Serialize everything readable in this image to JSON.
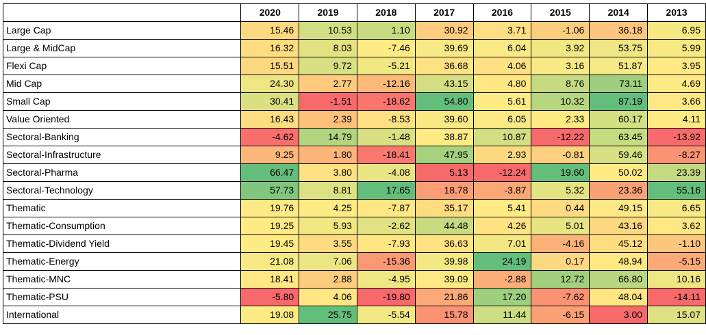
{
  "chart_data": {
    "type": "heatmap",
    "columns": [
      "2020",
      "2019",
      "2018",
      "2017",
      "2016",
      "2015",
      "2014",
      "2013"
    ],
    "rows": [
      {
        "category": "Large Cap",
        "values": [
          15.46,
          10.53,
          1.1,
          30.92,
          3.71,
          -1.06,
          36.18,
          6.95
        ],
        "display": [
          "15.46",
          "10.53",
          "1.10",
          "30.92",
          "3.71",
          "-1.06",
          "36.18",
          "6.95"
        ]
      },
      {
        "category": "Large & MidCap",
        "values": [
          16.32,
          8.03,
          -7.46,
          39.69,
          6.04,
          3.92,
          53.75,
          5.99
        ],
        "display": [
          "16.32",
          "8.03",
          "-7.46",
          "39.69",
          "6.04",
          "3.92",
          "53.75",
          "5.99"
        ]
      },
      {
        "category": "Flexi Cap",
        "values": [
          15.51,
          9.72,
          -5.21,
          36.68,
          4.06,
          3.16,
          51.87,
          3.95
        ],
        "display": [
          "15.51",
          "9.72",
          "-5.21",
          "36.68",
          "4.06",
          "3.16",
          "51.87",
          "3.95"
        ]
      },
      {
        "category": "Mid Cap",
        "values": [
          24.3,
          2.77,
          -12.16,
          43.15,
          4.8,
          8.76,
          73.11,
          4.69
        ],
        "display": [
          "24.30",
          "2.77",
          "-12.16",
          "43.15",
          "4.80",
          "8.76",
          "73.11",
          "4.69"
        ]
      },
      {
        "category": "Small Cap",
        "values": [
          30.41,
          -1.51,
          -18.62,
          54.8,
          5.61,
          10.32,
          87.19,
          3.66
        ],
        "display": [
          "30.41",
          "-1.51",
          "-18.62",
          "54.80",
          "5.61",
          "10.32",
          "87.19",
          "3.66"
        ]
      },
      {
        "category": "Value Oriented",
        "values": [
          16.43,
          2.39,
          -8.53,
          39.6,
          6.05,
          2.33,
          60.17,
          4.11
        ],
        "display": [
          "16.43",
          "2.39",
          "-8.53",
          "39.60",
          "6.05",
          "2.33",
          "60.17",
          "4.11"
        ]
      },
      {
        "category": "Sectoral-Banking",
        "values": [
          -4.62,
          14.79,
          -1.48,
          38.87,
          10.87,
          -12.22,
          63.45,
          -13.92
        ],
        "display": [
          "-4.62",
          "14.79",
          "-1.48",
          "38.87",
          "10.87",
          "-12.22",
          "63.45",
          "-13.92"
        ]
      },
      {
        "category": "Sectoral-Infrastructure",
        "values": [
          9.25,
          1.8,
          -18.41,
          47.95,
          2.93,
          -0.81,
          59.46,
          -8.27
        ],
        "display": [
          "9.25",
          "1.80",
          "-18.41",
          "47.95",
          "2.93",
          "-0.81",
          "59.46",
          "-8.27"
        ]
      },
      {
        "category": "Sectoral-Pharma",
        "values": [
          66.47,
          3.8,
          -4.08,
          5.13,
          -12.24,
          19.6,
          50.02,
          23.39
        ],
        "display": [
          "66.47",
          "3.80",
          "-4.08",
          "5.13",
          "-12.24",
          "19.60",
          "50.02",
          "23.39"
        ]
      },
      {
        "category": "Sectoral-Technology",
        "values": [
          57.73,
          8.81,
          17.65,
          18.78,
          -3.87,
          5.32,
          23.36,
          55.16
        ],
        "display": [
          "57.73",
          "8.81",
          "17.65",
          "18.78",
          "-3.87",
          "5.32",
          "23.36",
          "55.16"
        ]
      },
      {
        "category": "Thematic",
        "values": [
          19.76,
          4.25,
          -7.87,
          35.17,
          5.41,
          0.44,
          49.15,
          6.65
        ],
        "display": [
          "19.76",
          "4.25",
          "-7.87",
          "35.17",
          "5.41",
          "0.44",
          "49.15",
          "6.65"
        ]
      },
      {
        "category": "Thematic-Consumption",
        "values": [
          19.25,
          5.93,
          -2.62,
          44.48,
          4.26,
          5.01,
          43.16,
          3.62
        ],
        "display": [
          "19.25",
          "5.93",
          "-2.62",
          "44.48",
          "4.26",
          "5.01",
          "43.16",
          "3.62"
        ]
      },
      {
        "category": "Thematic-Dividend Yield",
        "values": [
          19.45,
          3.55,
          -7.93,
          36.63,
          7.01,
          -4.16,
          45.12,
          -1.1
        ],
        "display": [
          "19.45",
          "3.55",
          "-7.93",
          "36.63",
          "7.01",
          "-4.16",
          "45.12",
          "-1.10"
        ]
      },
      {
        "category": "Thematic-Energy",
        "values": [
          21.08,
          7.06,
          -15.36,
          39.98,
          24.19,
          0.17,
          48.94,
          -5.15
        ],
        "display": [
          "21.08",
          "7.06",
          "-15.36",
          "39.98",
          "24.19",
          "0.17",
          "48.94",
          "-5.15"
        ]
      },
      {
        "category": "Thematic-MNC",
        "values": [
          18.41,
          2.88,
          -4.95,
          39.09,
          -2.88,
          12.72,
          66.8,
          10.16
        ],
        "display": [
          "18.41",
          "2.88",
          "-4.95",
          "39.09",
          "-2.88",
          "12.72",
          "66.80",
          "10.16"
        ]
      },
      {
        "category": "Thematic-PSU",
        "values": [
          -5.8,
          4.06,
          -19.8,
          21.86,
          17.2,
          -7.62,
          48.04,
          -14.11
        ],
        "display": [
          "-5.80",
          "4.06",
          "-19.80",
          "21.86",
          "17.20",
          "-7.62",
          "48.04",
          "-14.11"
        ]
      },
      {
        "category": "International",
        "values": [
          19.08,
          25.75,
          -5.54,
          15.78,
          11.44,
          -6.15,
          3.0,
          15.07
        ],
        "display": [
          "19.08",
          "25.75",
          "-5.54",
          "15.78",
          "11.44",
          "-6.15",
          "3.00",
          "15.07"
        ]
      }
    ],
    "color_scale": {
      "low": "#f8696b",
      "mid": "#ffeb84",
      "high": "#63be7b",
      "mode": "per-column"
    },
    "grid": true
  }
}
